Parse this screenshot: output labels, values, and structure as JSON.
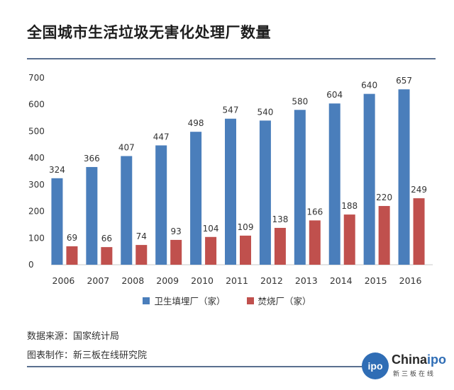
{
  "title": "全国城市生活垃圾无害化处理厂数量",
  "colors": {
    "series1": "#4a7ebb",
    "series2": "#c0504d"
  },
  "chart_data": {
    "type": "bar",
    "categories": [
      "2006",
      "2007",
      "2008",
      "2009",
      "2010",
      "2011",
      "2012",
      "2013",
      "2014",
      "2015",
      "2016"
    ],
    "series": [
      {
        "name": "卫生填埋厂（家）",
        "values": [
          324,
          366,
          407,
          447,
          498,
          547,
          540,
          580,
          604,
          640,
          657
        ]
      },
      {
        "name": "焚烧厂（家）",
        "values": [
          69,
          66,
          74,
          93,
          104,
          109,
          138,
          166,
          188,
          220,
          249
        ]
      }
    ],
    "yticks": [
      0,
      100,
      200,
      300,
      400,
      500,
      600,
      700
    ],
    "ylim": [
      0,
      700
    ],
    "grid": false,
    "legend": "bottom"
  },
  "source": "数据来源：国家统计局",
  "credit": "图表制作：新三板在线研究院",
  "logo": {
    "word_black": "China",
    "word_blue": "ipo",
    "circle_text": "ipo",
    "sub": "新三板在线"
  }
}
